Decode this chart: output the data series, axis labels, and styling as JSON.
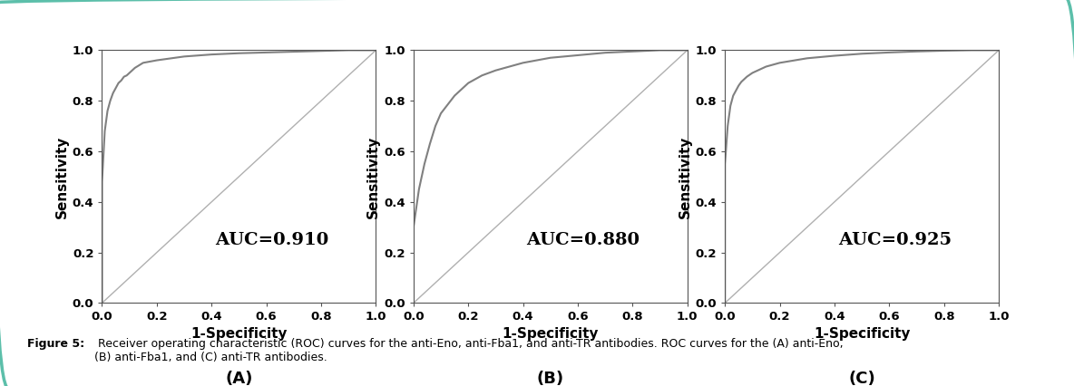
{
  "panels": [
    {
      "auc": "AUC=0.910",
      "label": "(A)",
      "roc_curve": {
        "x": [
          0.0,
          0.0,
          0.01,
          0.02,
          0.03,
          0.04,
          0.05,
          0.06,
          0.07,
          0.08,
          0.09,
          0.1,
          0.12,
          0.15,
          0.2,
          0.3,
          0.4,
          0.5,
          0.6,
          0.7,
          0.8,
          0.9,
          1.0
        ],
        "y": [
          0.0,
          0.48,
          0.68,
          0.76,
          0.8,
          0.83,
          0.85,
          0.87,
          0.88,
          0.895,
          0.9,
          0.91,
          0.93,
          0.95,
          0.96,
          0.975,
          0.983,
          0.988,
          0.991,
          0.994,
          0.997,
          1.0,
          1.0
        ]
      }
    },
    {
      "auc": "AUC=0.880",
      "label": "(B)",
      "roc_curve": {
        "x": [
          0.0,
          0.0,
          0.02,
          0.04,
          0.06,
          0.08,
          0.1,
          0.15,
          0.2,
          0.25,
          0.3,
          0.4,
          0.5,
          0.6,
          0.7,
          0.8,
          0.9,
          1.0
        ],
        "y": [
          0.0,
          0.3,
          0.45,
          0.55,
          0.63,
          0.7,
          0.75,
          0.82,
          0.87,
          0.9,
          0.92,
          0.95,
          0.97,
          0.98,
          0.99,
          0.995,
          1.0,
          1.0
        ]
      }
    },
    {
      "auc": "AUC=0.925",
      "label": "(C)",
      "roc_curve": {
        "x": [
          0.0,
          0.0,
          0.01,
          0.02,
          0.03,
          0.04,
          0.05,
          0.06,
          0.08,
          0.1,
          0.15,
          0.2,
          0.3,
          0.4,
          0.5,
          0.6,
          0.7,
          0.8,
          0.9,
          1.0
        ],
        "y": [
          0.0,
          0.55,
          0.7,
          0.78,
          0.82,
          0.84,
          0.86,
          0.875,
          0.895,
          0.91,
          0.935,
          0.95,
          0.968,
          0.978,
          0.986,
          0.991,
          0.995,
          0.998,
          1.0,
          1.0
        ]
      }
    }
  ],
  "roc_color": "#808080",
  "diag_color": "#b0b0b0",
  "auc_fontsize": 14,
  "label_fontsize": 13,
  "tick_fontsize": 9.5,
  "axis_label_fontsize": 11,
  "sub_label_fontsize": 13,
  "xlabel": "1-Specificity",
  "ylabel": "Sensitivity",
  "xlim": [
    0.0,
    1.0
  ],
  "ylim": [
    0.0,
    1.0
  ],
  "xticks": [
    0.0,
    0.2,
    0.4,
    0.6,
    0.8,
    1.0
  ],
  "yticks": [
    0.0,
    0.2,
    0.4,
    0.6,
    0.8,
    1.0
  ],
  "background_color": "#ffffff",
  "border_color": "#5cbfaa",
  "caption_bold": "Figure 5:",
  "caption_normal": " Receiver operating characteristic (ROC) curves for the anti-Eno, anti-Fba1, and anti-TR antibodies. ROC curves for the (A) anti-Eno,\n(B) anti-Fba1, and (C) anti-TR antibodies.",
  "caption_fontsize": 9
}
